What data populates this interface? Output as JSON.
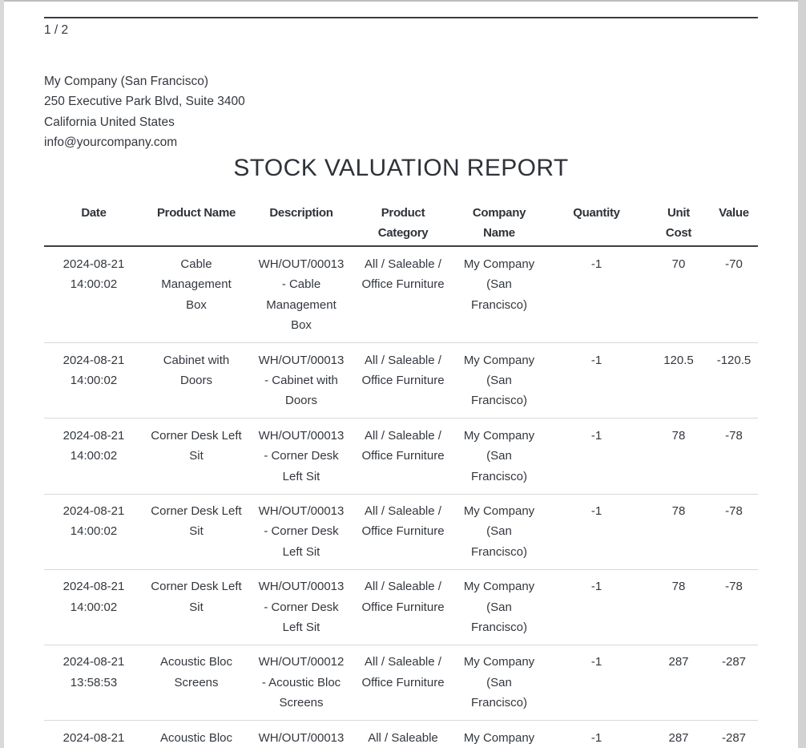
{
  "page": {
    "page_indicator": "1 / 2",
    "company_block": {
      "name": "My Company (San Francisco)",
      "address_line1": "250 Executive Park Blvd, Suite 3400",
      "address_line2": "California United States",
      "email": "info@yourcompany.com"
    },
    "title": "STOCK VALUATION REPORT",
    "table": {
      "columns": [
        "Date",
        "Product Name",
        "Description",
        "Product Category",
        "Company Name",
        "Quantity",
        "Unit Cost",
        "Value"
      ],
      "rows": [
        [
          "2024-08-21 14:00:02",
          "Cable Management Box",
          "WH/OUT/00013 - Cable Management Box",
          "All / Saleable / Office Furniture",
          "My Company (San Francisco)",
          "-1",
          "70",
          "-70"
        ],
        [
          "2024-08-21 14:00:02",
          "Cabinet with Doors",
          "WH/OUT/00013 - Cabinet with Doors",
          "All / Saleable / Office Furniture",
          "My Company (San Francisco)",
          "-1",
          "120.5",
          "-120.5"
        ],
        [
          "2024-08-21 14:00:02",
          "Corner Desk Left Sit",
          "WH/OUT/00013 - Corner Desk Left Sit",
          "All / Saleable / Office Furniture",
          "My Company (San Francisco)",
          "-1",
          "78",
          "-78"
        ],
        [
          "2024-08-21 14:00:02",
          "Corner Desk Left Sit",
          "WH/OUT/00013 - Corner Desk Left Sit",
          "All / Saleable / Office Furniture",
          "My Company (San Francisco)",
          "-1",
          "78",
          "-78"
        ],
        [
          "2024-08-21 14:00:02",
          "Corner Desk Left Sit",
          "WH/OUT/00013 - Corner Desk Left Sit",
          "All / Saleable / Office Furniture",
          "My Company (San Francisco)",
          "-1",
          "78",
          "-78"
        ],
        [
          "2024-08-21 13:58:53",
          "Acoustic Bloc Screens",
          "WH/OUT/00012 - Acoustic Bloc Screens",
          "All / Saleable / Office Furniture",
          "My Company (San Francisco)",
          "-1",
          "287",
          "-287"
        ],
        [
          "2024-08-21",
          "Acoustic Bloc",
          "WH/OUT/00013",
          "All / Saleable",
          "My Company",
          "-1",
          "287",
          "-287"
        ]
      ]
    }
  },
  "colors": {
    "page_background": "#ffffff",
    "text": "#33373d",
    "header_rule": "#3a3e42",
    "row_divider": "#d9d9d9",
    "page_edge": "#d2d2d2"
  }
}
